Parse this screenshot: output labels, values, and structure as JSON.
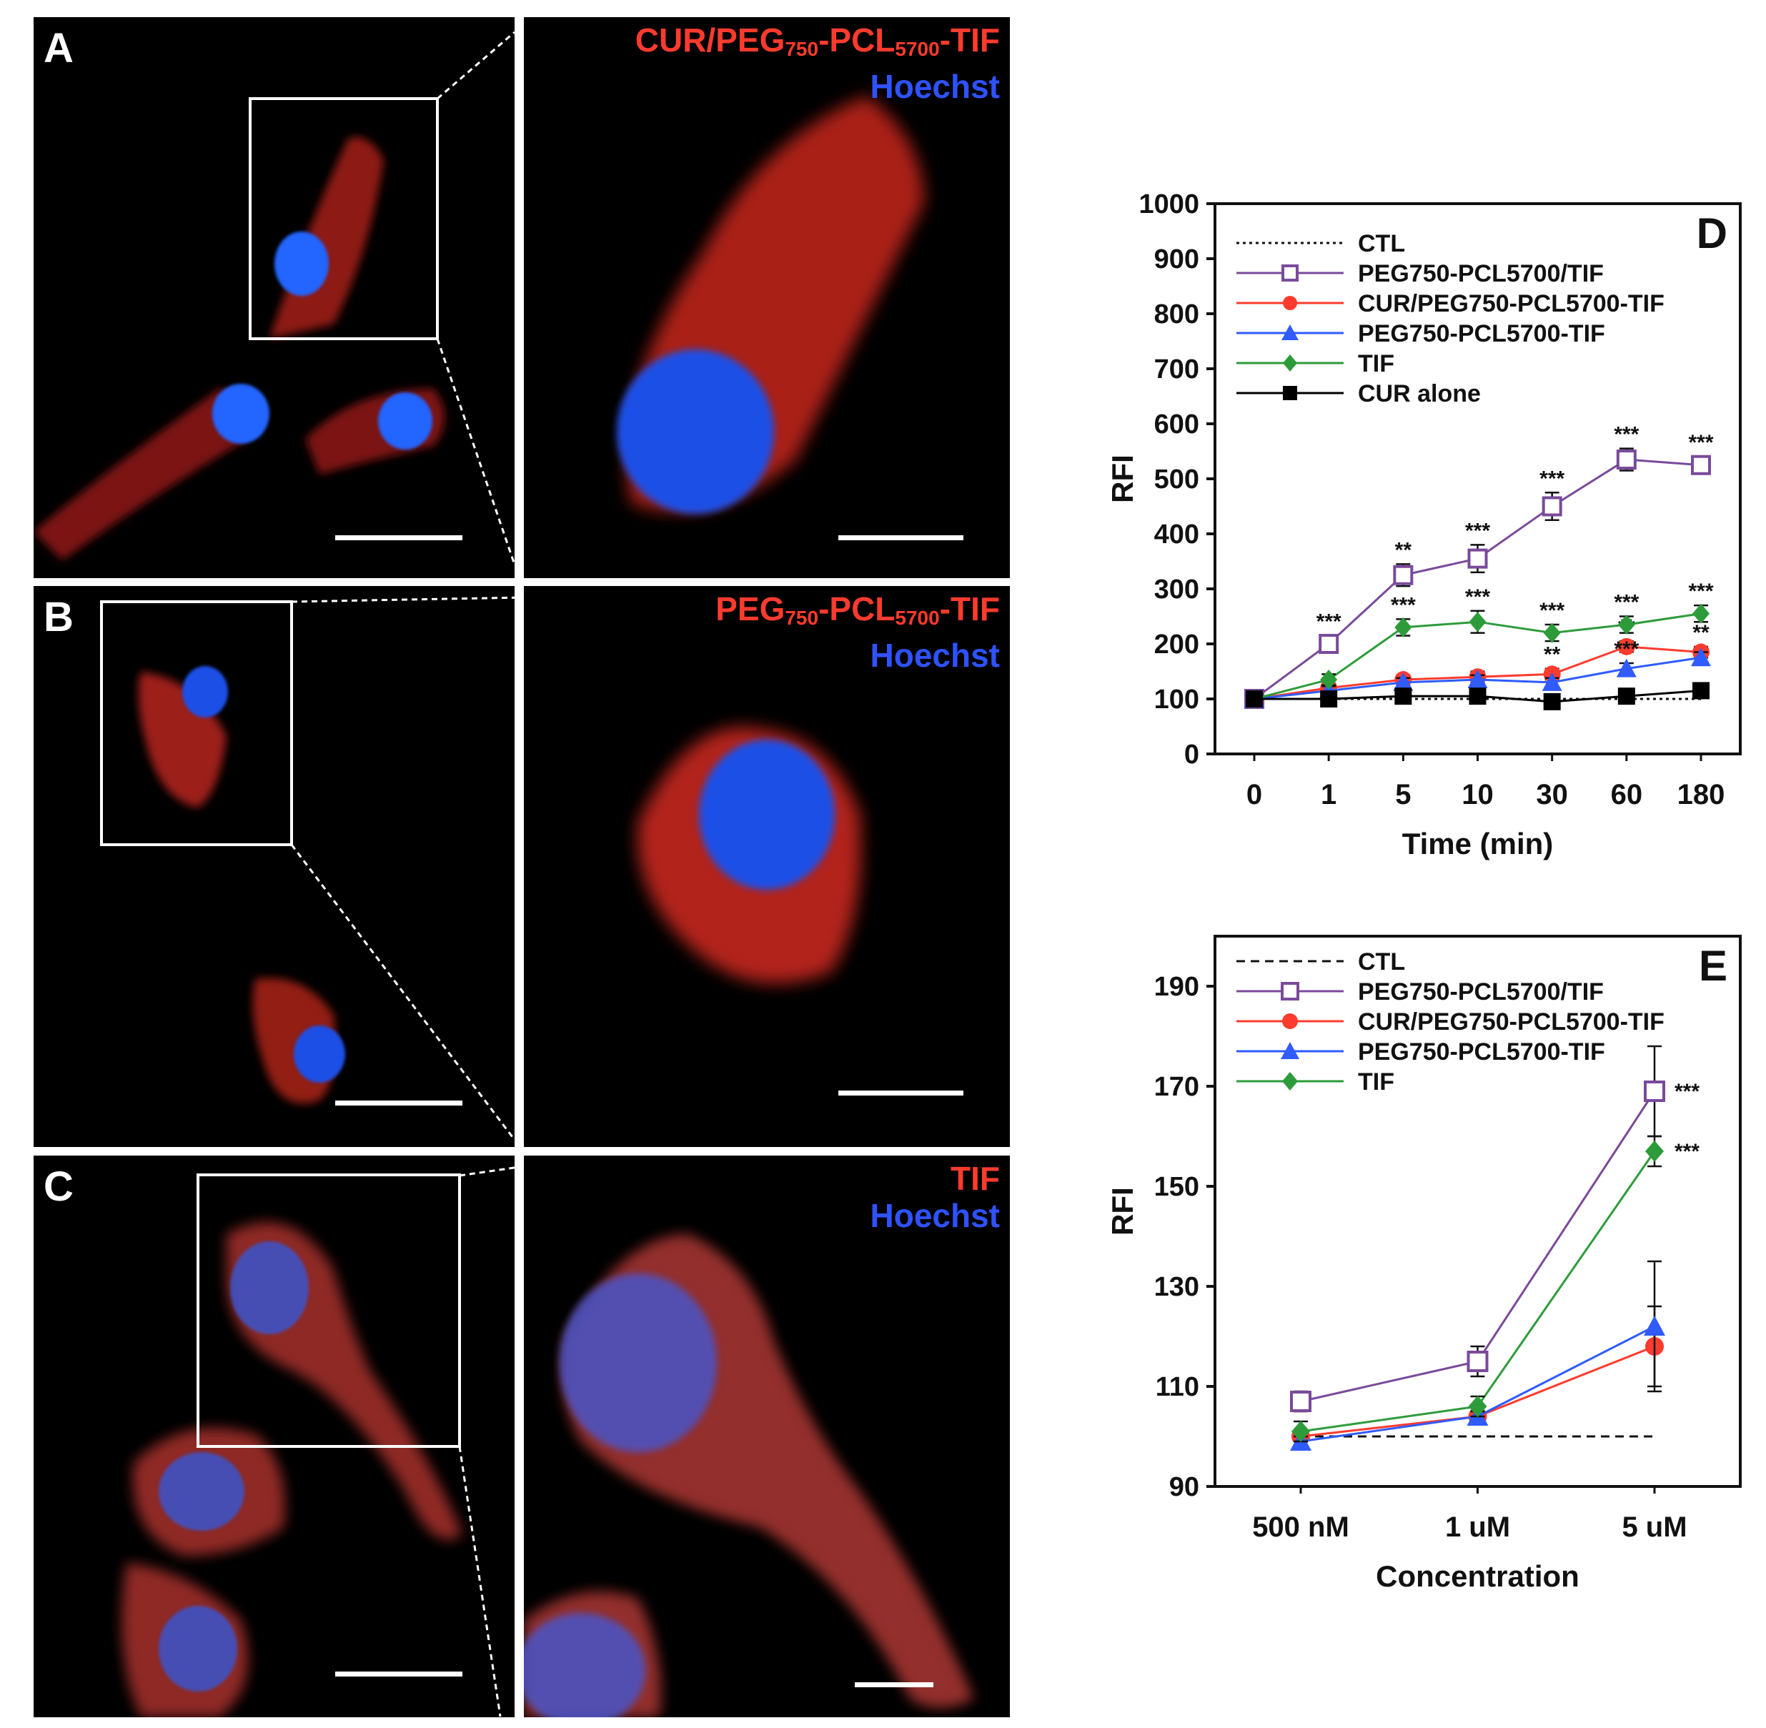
{
  "micrographs": {
    "A": {
      "label": "A",
      "stain_prefix": "CUR/PEG",
      "stain_sub1": "750",
      "stain_mid": "-PCL",
      "stain_sub2": "5700",
      "stain_suffix": "-TIF",
      "counterstain": "Hoechst"
    },
    "B": {
      "label": "B",
      "stain_prefix": "PEG",
      "stain_sub1": "750",
      "stain_mid": "-PCL",
      "stain_sub2": "5700",
      "stain_suffix": "-TIF",
      "counterstain": "Hoechst"
    },
    "C": {
      "label": "C",
      "stain": "TIF",
      "counterstain": "Hoechst"
    }
  },
  "colors": {
    "ctl": "#111111",
    "peg_pcl_tif_slash": "#7a4a9a",
    "cur_peg_pcl_tif": "#ff3b2e",
    "peg_pcl_tif": "#2f5bff",
    "tif": "#2e9b3a",
    "cur_alone": "#000000"
  },
  "chart_data": [
    {
      "panel": "D",
      "type": "line",
      "xlabel": "Time (min)",
      "ylabel": "RFI",
      "categories": [
        "0",
        "1",
        "5",
        "10",
        "30",
        "60",
        "180"
      ],
      "ylim": [
        0,
        1000
      ],
      "yticks": [
        "0",
        "100",
        "200",
        "300",
        "400",
        "500",
        "600",
        "700",
        "800",
        "900",
        "1000"
      ],
      "legend_position": "top-left",
      "series": [
        {
          "name": "CTL",
          "style": "dotted",
          "values": [
            100,
            100,
            100,
            100,
            100,
            100,
            100
          ]
        },
        {
          "name": "PEG750-PCL5700/TIF",
          "marker": "open-square",
          "values": [
            100,
            200,
            325,
            355,
            450,
            535,
            525
          ],
          "errors": [
            0,
            15,
            20,
            25,
            25,
            20,
            15
          ],
          "annotations": [
            "",
            "***",
            "**",
            "***",
            "***",
            "***",
            "***"
          ]
        },
        {
          "name": "CUR/PEG750-PCL5700-TIF",
          "marker": "circle",
          "values": [
            100,
            120,
            135,
            140,
            145,
            195,
            185
          ],
          "errors": [
            0,
            8,
            8,
            10,
            10,
            10,
            10
          ],
          "annotations": [
            "",
            "",
            "",
            "",
            "**",
            "**",
            "**"
          ]
        },
        {
          "name": "PEG750-PCL5700-TIF",
          "marker": "triangle",
          "values": [
            100,
            115,
            130,
            135,
            130,
            155,
            175
          ],
          "errors": [
            0,
            8,
            8,
            8,
            8,
            10,
            10
          ],
          "annotations": [
            "",
            "",
            "",
            "",
            "",
            "***",
            ""
          ]
        },
        {
          "name": "TIF",
          "marker": "diamond",
          "values": [
            100,
            135,
            230,
            240,
            220,
            235,
            255
          ],
          "errors": [
            0,
            10,
            15,
            20,
            15,
            15,
            15
          ],
          "annotations": [
            "",
            "",
            "***",
            "***",
            "***",
            "***",
            "***"
          ]
        },
        {
          "name": "CUR alone",
          "marker": "filled-square",
          "values": [
            100,
            100,
            105,
            105,
            95,
            105,
            115
          ],
          "errors": [
            0,
            5,
            5,
            5,
            5,
            5,
            5
          ],
          "annotations": [
            "",
            "",
            "",
            "",
            "",
            "",
            ""
          ]
        }
      ]
    },
    {
      "panel": "E",
      "type": "line",
      "xlabel": "Concentration",
      "ylabel": "RFI",
      "categories": [
        "500 nM",
        "1 uM",
        "5 uM"
      ],
      "ylim": [
        90,
        200
      ],
      "yticks": [
        "90",
        "110",
        "130",
        "150",
        "170",
        "190"
      ],
      "legend_position": "top-left",
      "series": [
        {
          "name": "CTL",
          "style": "dashed",
          "values": [
            100,
            100,
            100
          ]
        },
        {
          "name": "PEG750-PCL5700/TIF",
          "marker": "open-square",
          "values": [
            107,
            115,
            169
          ],
          "errors": [
            2,
            3,
            9
          ],
          "annotations": [
            "",
            "",
            "***"
          ]
        },
        {
          "name": "CUR/PEG750-PCL5700-TIF",
          "marker": "circle",
          "values": [
            100,
            104,
            118
          ],
          "errors": [
            1,
            1,
            8
          ],
          "annotations": [
            "",
            "",
            ""
          ]
        },
        {
          "name": "PEG750-PCL5700-TIF",
          "marker": "triangle",
          "values": [
            99,
            104,
            122
          ],
          "errors": [
            1,
            1,
            13
          ],
          "annotations": [
            "",
            "",
            ""
          ]
        },
        {
          "name": "TIF",
          "marker": "diamond",
          "values": [
            101,
            106,
            157
          ],
          "errors": [
            2,
            2,
            3
          ],
          "annotations": [
            "",
            "",
            "***"
          ]
        }
      ]
    }
  ]
}
